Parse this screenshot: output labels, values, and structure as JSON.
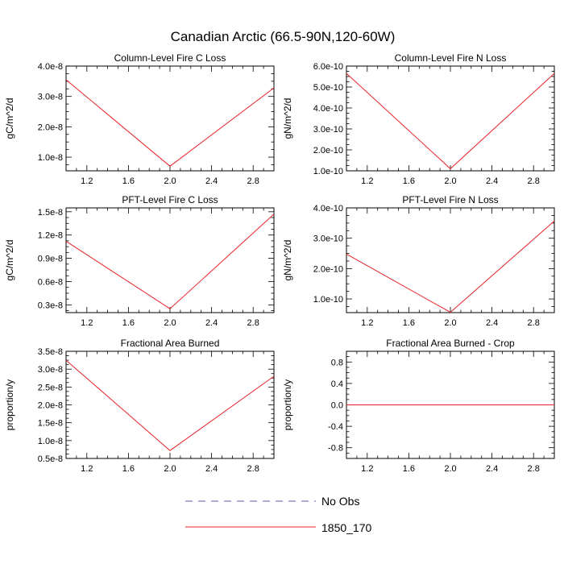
{
  "figure": {
    "title": "Canadian Arctic (66.5-90N,120-60W)"
  },
  "legend": [
    {
      "label": "No Obs",
      "color": "#5a5aa8",
      "dash": true
    },
    {
      "label": "1850_170",
      "color": "#e8242a",
      "dash": false
    }
  ],
  "chart_data": [
    {
      "type": "line",
      "title": "Column-Level Fire C Loss",
      "ylabel": "gC/m^2/d",
      "xlim": [
        1.0,
        3.0
      ],
      "ylim": [
        5.5e-09,
        4e-08
      ],
      "xticks": [
        "1.2",
        "1.6",
        "2.0",
        "2.4",
        "2.8"
      ],
      "yticks": [
        {
          "v": 1e-08,
          "label": "1.0e-8"
        },
        {
          "v": 2e-08,
          "label": "2.0e-8"
        },
        {
          "v": 3e-08,
          "label": "3.0e-8"
        },
        {
          "v": 4e-08,
          "label": "4.0e-8"
        }
      ],
      "series": [
        {
          "x": [
            1.0,
            2.0,
            3.0
          ],
          "y": [
            3.55e-08,
            7e-09,
            3.28e-08
          ],
          "color": "#e8242a"
        }
      ]
    },
    {
      "type": "line",
      "title": "Column-Level Fire N Loss",
      "ylabel": "gN/m^2/d",
      "xlim": [
        1.0,
        3.0
      ],
      "ylim": [
        1e-10,
        6e-10
      ],
      "xticks": [
        "1.2",
        "1.6",
        "2.0",
        "2.4",
        "2.8"
      ],
      "yticks": [
        {
          "v": 1e-10,
          "label": "1.0e-10"
        },
        {
          "v": 2e-10,
          "label": "2.0e-10"
        },
        {
          "v": 3e-10,
          "label": "3.0e-10"
        },
        {
          "v": 4e-10,
          "label": "4.0e-10"
        },
        {
          "v": 5e-10,
          "label": "5.0e-10"
        },
        {
          "v": 6e-10,
          "label": "6.0e-10"
        }
      ],
      "series": [
        {
          "x": [
            1.0,
            2.0,
            3.0
          ],
          "y": [
            5.65e-10,
            1.1e-10,
            5.65e-10
          ],
          "color": "#e8242a"
        }
      ]
    },
    {
      "type": "line",
      "title": "PFT-Level Fire C Loss",
      "ylabel": "gC/m^2/d",
      "xlim": [
        1.0,
        3.0
      ],
      "ylim": [
        2e-09,
        1.55e-08
      ],
      "xticks": [
        "1.2",
        "1.6",
        "2.0",
        "2.4",
        "2.8"
      ],
      "yticks": [
        {
          "v": 3e-09,
          "label": "0.3e-8"
        },
        {
          "v": 6e-09,
          "label": "0.6e-8"
        },
        {
          "v": 9e-09,
          "label": "0.9e-8"
        },
        {
          "v": 1.2e-08,
          "label": "1.2e-8"
        },
        {
          "v": 1.5e-08,
          "label": "1.5e-8"
        }
      ],
      "series": [
        {
          "x": [
            1.0,
            2.0,
            3.0
          ],
          "y": [
            1.12e-08,
            2.5e-09,
            1.47e-08
          ],
          "color": "#e8242a"
        }
      ]
    },
    {
      "type": "line",
      "title": "PFT-Level Fire N Loss",
      "ylabel": "gN/m^2/d",
      "xlim": [
        1.0,
        3.0
      ],
      "ylim": [
        5.5e-11,
        4e-10
      ],
      "xticks": [
        "1.2",
        "1.6",
        "2.0",
        "2.4",
        "2.8"
      ],
      "yticks": [
        {
          "v": 1e-10,
          "label": "1.0e-10"
        },
        {
          "v": 2e-10,
          "label": "2.0e-10"
        },
        {
          "v": 3e-10,
          "label": "3.0e-10"
        },
        {
          "v": 4e-10,
          "label": "4.0e-10"
        }
      ],
      "series": [
        {
          "x": [
            1.0,
            2.0,
            3.0
          ],
          "y": [
            2.48e-10,
            5.6e-11,
            3.57e-10
          ],
          "color": "#e8242a"
        }
      ]
    },
    {
      "type": "line",
      "title": "Fractional Area Burned",
      "ylabel": "proportion/y",
      "xlim": [
        1.0,
        3.0
      ],
      "ylim": [
        5e-09,
        3.5e-08
      ],
      "xticks": [
        "1.2",
        "1.6",
        "2.0",
        "2.4",
        "2.8"
      ],
      "yticks": [
        {
          "v": 5e-09,
          "label": "0.5e-8"
        },
        {
          "v": 1e-08,
          "label": "1.0e-8"
        },
        {
          "v": 1.5e-08,
          "label": "1.5e-8"
        },
        {
          "v": 2e-08,
          "label": "2.0e-8"
        },
        {
          "v": 2.5e-08,
          "label": "2.5e-8"
        },
        {
          "v": 3e-08,
          "label": "3.0e-8"
        },
        {
          "v": 3.5e-08,
          "label": "3.5e-8"
        }
      ],
      "series": [
        {
          "x": [
            1.0,
            2.0,
            3.0
          ],
          "y": [
            3.25e-08,
            7.2e-09,
            2.8e-08
          ],
          "color": "#e8242a"
        }
      ]
    },
    {
      "type": "line",
      "title": "Fractional Area Burned - Crop",
      "ylabel": "proportion/y",
      "xlim": [
        1.0,
        3.0
      ],
      "ylim": [
        -1.0,
        1.0
      ],
      "xticks": [
        "1.2",
        "1.6",
        "2.0",
        "2.4",
        "2.8"
      ],
      "yticks": [
        {
          "v": -0.8,
          "label": "-0.8"
        },
        {
          "v": -0.4,
          "label": "-0.4"
        },
        {
          "v": 0.0,
          "label": "0.0"
        },
        {
          "v": 0.4,
          "label": "0.4"
        },
        {
          "v": 0.8,
          "label": "0.8"
        }
      ],
      "series": [
        {
          "x": [
            1.0,
            2.0,
            3.0
          ],
          "y": [
            0.0,
            0.0,
            0.0
          ],
          "color": "#e8242a"
        }
      ]
    }
  ]
}
